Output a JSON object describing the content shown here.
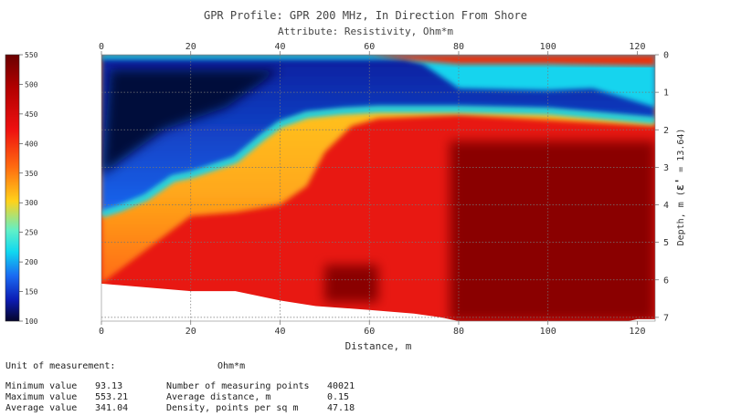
{
  "title": "GPR Profile: GPR 200 MHz, In Direction From Shore",
  "subtitle": "Attribute:  Resistivity, Ohm*m",
  "chart_data": {
    "type": "heatmap",
    "xlabel": "Distance, m",
    "ylabel_prefix": "Depth, m (",
    "ylabel_eps": "ε'",
    "ylabel_suffix": " = 13.64)",
    "xlim": [
      0,
      124
    ],
    "ylim": [
      0,
      7.1
    ],
    "x_ticks": [
      0,
      20,
      40,
      60,
      80,
      100,
      120
    ],
    "y_ticks": [
      0,
      1,
      2,
      3,
      4,
      5,
      6,
      7
    ],
    "x_gridlines": [
      20,
      40,
      60,
      80,
      100
    ],
    "y_gridlines": [
      1,
      2,
      3,
      4,
      5,
      6,
      7
    ],
    "colorbar": {
      "min": 100,
      "max": 550,
      "ticks": [
        550,
        500,
        450,
        400,
        350,
        300,
        250,
        200,
        150,
        100
      ]
    },
    "bottom_boundary": [
      [
        0,
        6.1
      ],
      [
        10,
        6.2
      ],
      [
        20,
        6.3
      ],
      [
        30,
        6.3
      ],
      [
        40,
        6.55
      ],
      [
        48,
        6.7
      ],
      [
        60,
        6.8
      ],
      [
        70,
        6.9
      ],
      [
        76,
        7.0
      ],
      [
        80,
        7.1
      ],
      [
        100,
        7.1
      ],
      [
        118,
        7.1
      ],
      [
        120,
        7.05
      ],
      [
        124,
        7.05
      ]
    ],
    "layers": {
      "surface_blue_boundary": [
        [
          0,
          0
        ],
        [
          30,
          0.05
        ],
        [
          60,
          0.1
        ],
        [
          68,
          0.12
        ],
        [
          72,
          0.25
        ],
        [
          80,
          0.9
        ],
        [
          100,
          0.95
        ],
        [
          110,
          0.9
        ],
        [
          124,
          1.4
        ]
      ],
      "top_red_boundary": [
        [
          0,
          0
        ],
        [
          60,
          0
        ],
        [
          70,
          0.15
        ],
        [
          80,
          0.25
        ],
        [
          100,
          0.25
        ],
        [
          124,
          0.3
        ]
      ],
      "blue_bottom_boundary": [
        [
          0,
          4.25
        ],
        [
          4,
          4.1
        ],
        [
          10,
          3.8
        ],
        [
          16,
          3.3
        ],
        [
          20,
          3.2
        ],
        [
          30,
          2.8
        ],
        [
          36,
          2.2
        ],
        [
          40,
          1.85
        ],
        [
          46,
          1.6
        ],
        [
          54,
          1.5
        ],
        [
          62,
          1.45
        ],
        [
          80,
          1.45
        ],
        [
          100,
          1.5
        ],
        [
          124,
          1.75
        ]
      ],
      "orange_bottom_boundary": [
        [
          0,
          6.1
        ],
        [
          20,
          4.3
        ],
        [
          30,
          4.2
        ],
        [
          40,
          4.0
        ],
        [
          46,
          3.5
        ],
        [
          50,
          2.6
        ],
        [
          56,
          1.9
        ],
        [
          62,
          1.7
        ],
        [
          80,
          1.6
        ],
        [
          124,
          1.9
        ]
      ],
      "dark_red_zones": [
        {
          "x": [
            78,
            124
          ],
          "y": [
            2.3,
            7.1
          ]
        },
        {
          "x": [
            50,
            62
          ],
          "y": [
            5.6,
            6.6
          ]
        }
      ],
      "deep_blue_zone": {
        "x": [
          0,
          40
        ],
        "y": [
          0.4,
          3.2
        ]
      }
    }
  },
  "stats": {
    "unit_label": "Unit of measurement:",
    "unit_value": "Ohm*m",
    "min_label": "Minimum value",
    "min_value": "93.13",
    "max_label": "Maximum value",
    "max_value": "553.21",
    "avg_label": "Average value",
    "avg_value": "341.04",
    "points_label": "Number of measuring points",
    "points_value": "40021",
    "dist_label": "Average distance, m",
    "dist_value": "0.15",
    "density_label": "Density, points per sq m",
    "density_value": "47.18"
  }
}
